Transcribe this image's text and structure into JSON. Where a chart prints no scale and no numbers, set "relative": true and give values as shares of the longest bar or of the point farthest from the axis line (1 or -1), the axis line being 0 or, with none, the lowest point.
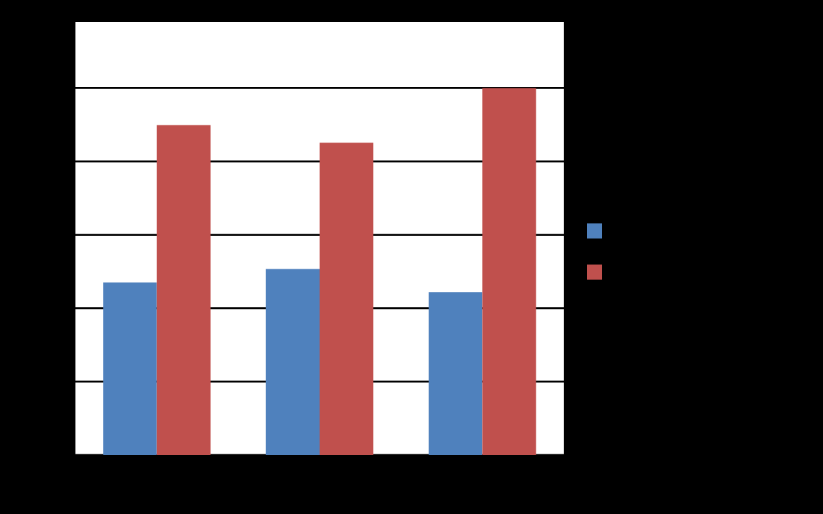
{
  "chart_data": {
    "type": "bar",
    "relative": true,
    "categories": [
      null,
      null,
      null
    ],
    "series": [
      {
        "color": "#4f81bd",
        "values": [
          0.47,
          0.507,
          0.444
        ]
      },
      {
        "color": "#c0504d",
        "values": [
          0.899,
          0.851,
          1
        ]
      }
    ],
    "grid": "y"
  }
}
